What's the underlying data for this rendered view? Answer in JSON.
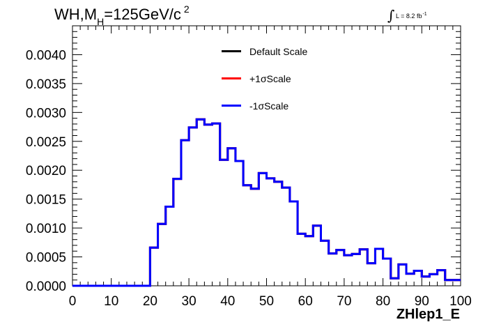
{
  "title": {
    "main": "WH,M",
    "sub": "H",
    "rest": "=125GeV/c",
    "sup": "2"
  },
  "lumi": {
    "symbol": "∫",
    "text": "L = 8.2 fb",
    "sup": "-1"
  },
  "colors": {
    "default": "#000000",
    "plus": "#ff0000",
    "minus": "#0000ff",
    "frame": "#000000",
    "background": "#ffffff"
  },
  "chart_data": {
    "type": "line",
    "style": "step-histogram",
    "title": "",
    "xlabel": "ZHlep1_E",
    "ylabel": "",
    "xlim": [
      0,
      100
    ],
    "ylim": [
      0,
      0.0045
    ],
    "grid": false,
    "legend_position": "top-center",
    "x_ticks": [
      "0",
      "10",
      "20",
      "30",
      "40",
      "50",
      "60",
      "70",
      "80",
      "90",
      "100"
    ],
    "y_ticks": [
      "0.0000",
      "0.0005",
      "0.0010",
      "0.0015",
      "0.0020",
      "0.0025",
      "0.0030",
      "0.0035",
      "0.0040"
    ],
    "bin_edges": [
      0,
      2,
      4,
      6,
      8,
      10,
      12,
      14,
      16,
      18,
      20,
      22,
      24,
      26,
      28,
      30,
      32,
      34,
      36,
      38,
      40,
      42,
      44,
      46,
      48,
      50,
      52,
      54,
      56,
      58,
      60,
      62,
      64,
      66,
      68,
      70,
      72,
      74,
      76,
      78,
      80,
      82,
      84,
      86,
      88,
      90,
      92,
      94,
      96,
      98,
      100
    ],
    "series": [
      {
        "name": "Default Scale",
        "values": [
          0,
          0,
          0,
          0,
          0,
          0,
          0,
          0,
          0,
          0,
          0.00066,
          0.00107,
          0.00137,
          0.00185,
          0.00252,
          0.00274,
          0.00288,
          0.00279,
          0.00281,
          0.00218,
          0.00238,
          0.00216,
          0.00174,
          0.00168,
          0.00195,
          0.00186,
          0.0018,
          0.0017,
          0.00146,
          0.0009,
          0.00086,
          0.00104,
          0.00078,
          0.00056,
          0.00062,
          0.00053,
          0.00055,
          0.00063,
          0.00039,
          0.00064,
          0.00047,
          0.00013,
          0.00037,
          0.00021,
          0.00026,
          0.00016,
          0.0002,
          0.00027,
          0.0001,
          0.0001
        ]
      },
      {
        "name": "+1σScale",
        "values": [
          0,
          0,
          0,
          0,
          0,
          0,
          0,
          0,
          0,
          0,
          0.00066,
          0.00107,
          0.00137,
          0.00185,
          0.00252,
          0.00274,
          0.00288,
          0.00279,
          0.00281,
          0.00218,
          0.00238,
          0.00216,
          0.00174,
          0.00168,
          0.00195,
          0.00186,
          0.0018,
          0.0017,
          0.00146,
          0.0009,
          0.00086,
          0.00104,
          0.00078,
          0.00056,
          0.00062,
          0.00053,
          0.00055,
          0.00063,
          0.00039,
          0.00064,
          0.00047,
          0.00013,
          0.00037,
          0.00021,
          0.00026,
          0.00016,
          0.0002,
          0.00027,
          0.0001,
          0.0001
        ]
      },
      {
        "name": "-1σScale",
        "values": [
          0,
          0,
          0,
          0,
          0,
          0,
          0,
          0,
          0,
          0,
          0.00066,
          0.00107,
          0.00137,
          0.00185,
          0.00252,
          0.00274,
          0.00288,
          0.00279,
          0.00281,
          0.00218,
          0.00238,
          0.00216,
          0.00174,
          0.00168,
          0.00195,
          0.00186,
          0.0018,
          0.0017,
          0.00146,
          0.0009,
          0.00086,
          0.00104,
          0.00078,
          0.00056,
          0.00062,
          0.00053,
          0.00055,
          0.00063,
          0.00039,
          0.00064,
          0.00047,
          0.00013,
          0.00037,
          0.00021,
          0.00026,
          0.00016,
          0.0002,
          0.00027,
          0.0001,
          0.0001
        ]
      }
    ]
  }
}
